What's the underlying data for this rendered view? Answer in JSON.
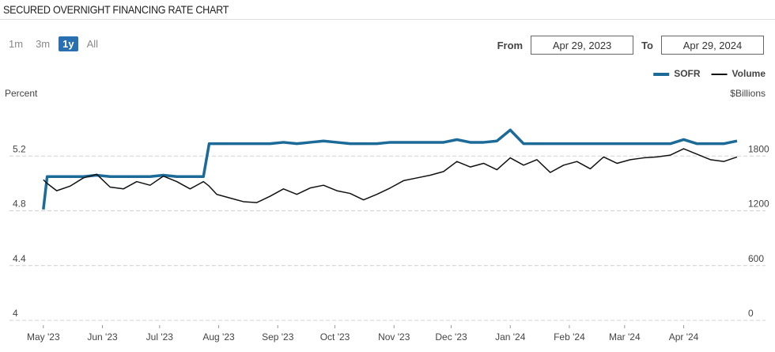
{
  "ui": {
    "title": "SECURED OVERNIGHT FINANCING RATE CHART",
    "range_buttons": [
      "1m",
      "3m",
      "1y",
      "All"
    ],
    "from_label": "From",
    "from_value": "Apr 29, 2023",
    "to_label": "To",
    "to_value": "Apr 29, 2024"
  },
  "chart_data": {
    "type": "line",
    "y_label": "Percent",
    "y2_label": "$Billions",
    "legend": "top-right",
    "grid": true,
    "xlim": [
      0,
      366
    ],
    "xticks": [
      {
        "value": 2,
        "label": "May '23"
      },
      {
        "value": 33,
        "label": "Jun '23"
      },
      {
        "value": 63,
        "label": "Jul '23"
      },
      {
        "value": 94,
        "label": "Aug '23"
      },
      {
        "value": 125,
        "label": "Sep '23"
      },
      {
        "value": 155,
        "label": "Oct '23"
      },
      {
        "value": 186,
        "label": "Nov '23"
      },
      {
        "value": 216,
        "label": "Dec '23"
      },
      {
        "value": 247,
        "label": "Jan '24"
      },
      {
        "value": 278,
        "label": "Feb '24"
      },
      {
        "value": 307,
        "label": "Mar '24"
      },
      {
        "value": 338,
        "label": "Apr '24"
      }
    ],
    "ylim": [
      4,
      5.6
    ],
    "yticks": [
      4,
      4.4,
      4.8,
      5.2
    ],
    "y2lim": [
      0,
      2400
    ],
    "y2ticks": [
      0,
      600,
      1200,
      1800
    ],
    "x": [
      2,
      4,
      9,
      16,
      23,
      30,
      37,
      44,
      51,
      58,
      65,
      72,
      79,
      86,
      89,
      93,
      100,
      107,
      114,
      121,
      128,
      135,
      142,
      149,
      156,
      163,
      170,
      177,
      184,
      191,
      198,
      205,
      212,
      219,
      226,
      233,
      240,
      247,
      254,
      261,
      268,
      275,
      282,
      289,
      296,
      303,
      310,
      317,
      324,
      331,
      338,
      345,
      352,
      359,
      366
    ],
    "series": [
      {
        "name": "SOFR",
        "color": "#1b6a98",
        "values": [
          4.81,
          5.05,
          5.05,
          5.05,
          5.05,
          5.06,
          5.05,
          5.05,
          5.05,
          5.05,
          5.06,
          5.05,
          5.05,
          5.05,
          5.29,
          5.29,
          5.29,
          5.29,
          5.29,
          5.29,
          5.3,
          5.29,
          5.3,
          5.31,
          5.3,
          5.29,
          5.29,
          5.29,
          5.3,
          5.3,
          5.3,
          5.3,
          5.3,
          5.32,
          5.3,
          5.3,
          5.31,
          5.39,
          5.29,
          5.29,
          5.29,
          5.29,
          5.29,
          5.29,
          5.29,
          5.29,
          5.29,
          5.29,
          5.29,
          5.29,
          5.32,
          5.29,
          5.29,
          5.29,
          5.31
        ]
      },
      {
        "name": "Volume",
        "color": "#111111",
        "axis": "y2",
        "values": [
          1540,
          1500,
          1420,
          1470,
          1560,
          1600,
          1460,
          1440,
          1520,
          1480,
          1580,
          1520,
          1440,
          1520,
          1470,
          1380,
          1340,
          1300,
          1290,
          1360,
          1440,
          1380,
          1450,
          1480,
          1420,
          1390,
          1320,
          1380,
          1450,
          1530,
          1560,
          1590,
          1630,
          1740,
          1680,
          1720,
          1650,
          1780,
          1700,
          1760,
          1620,
          1700,
          1740,
          1660,
          1790,
          1720,
          1760,
          1780,
          1790,
          1810,
          1880,
          1820,
          1760,
          1740,
          1790
        ]
      }
    ]
  }
}
